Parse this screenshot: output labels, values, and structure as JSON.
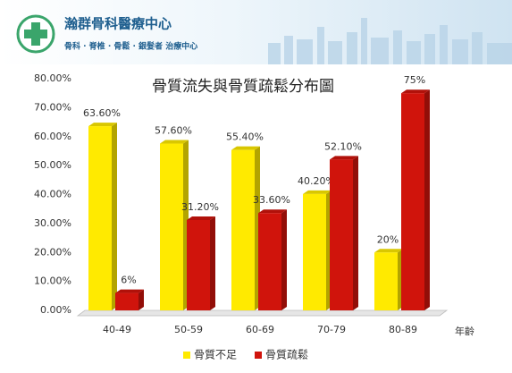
{
  "header": {
    "name": "瀚群骨科醫療中心",
    "services": "骨科 · 脊椎 · 骨鬆 · 銀髮者 治療中心"
  },
  "chart_data": {
    "type": "bar",
    "title": "骨質流失與骨質疏鬆分布圖",
    "x_label": "年齡",
    "categories": [
      "40-49",
      "50-59",
      "60-69",
      "70-79",
      "80-89"
    ],
    "series": [
      {
        "name": "骨質不足",
        "color": "#ffea00",
        "values": [
          63.6,
          57.6,
          55.4,
          40.2,
          20
        ],
        "value_labels": [
          "63.60%",
          "57.60%",
          "55.40%",
          "40.20%",
          "20%"
        ]
      },
      {
        "name": "骨質疏鬆",
        "color": "#d0140c",
        "values": [
          6,
          31.2,
          33.6,
          52.1,
          75
        ],
        "value_labels": [
          "6%",
          "31.20%",
          "33.60%",
          "52.10%",
          "75%"
        ]
      }
    ],
    "ylim": [
      0,
      80
    ],
    "yticks": [
      {
        "value": 0,
        "label": "0.00%"
      },
      {
        "value": 10,
        "label": "10.00%"
      },
      {
        "value": 20,
        "label": "20.00%"
      },
      {
        "value": 30,
        "label": "30.00%"
      },
      {
        "value": 40,
        "label": "40.00%"
      },
      {
        "value": 50,
        "label": "50.00%"
      },
      {
        "value": 60,
        "label": "60.00%"
      },
      {
        "value": 70,
        "label": "70.00%"
      },
      {
        "value": 80,
        "label": "80.00%"
      }
    ],
    "grid": false,
    "legend": "bottom"
  }
}
